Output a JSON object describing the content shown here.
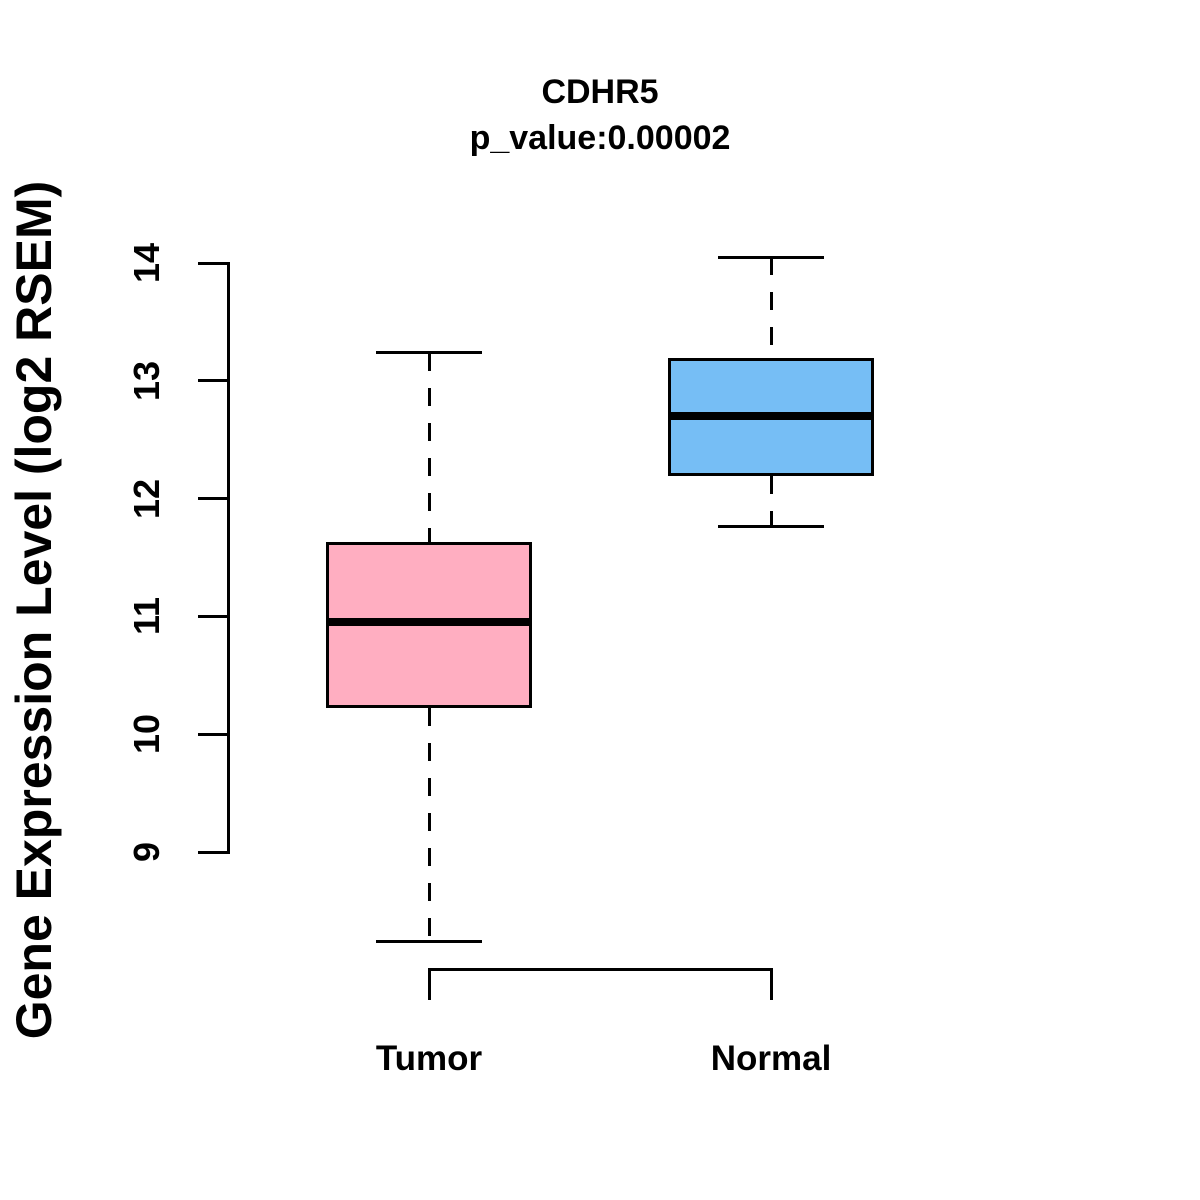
{
  "chart_data": {
    "type": "boxplot",
    "title": "CDHR5",
    "subtitle": "p_value:0.00002",
    "ylabel": "Gene Expression Level (log2 RSEM)",
    "xlabel": "",
    "ylim": [
      8.2,
      14.1
    ],
    "yticks": [
      9,
      10,
      11,
      12,
      13,
      14
    ],
    "categories": [
      "Tumor",
      "Normal"
    ],
    "series": [
      {
        "name": "Tumor",
        "color": "#FFAEC1",
        "whisker_low": 8.24,
        "q1": 10.22,
        "median": 10.95,
        "q3": 11.63,
        "whisker_high": 13.24
      },
      {
        "name": "Normal",
        "color": "#76BEF5",
        "whisker_low": 11.76,
        "q1": 12.19,
        "median": 12.7,
        "q3": 13.19,
        "whisker_high": 14.05
      }
    ],
    "grid": false,
    "line_color": "#000000"
  }
}
